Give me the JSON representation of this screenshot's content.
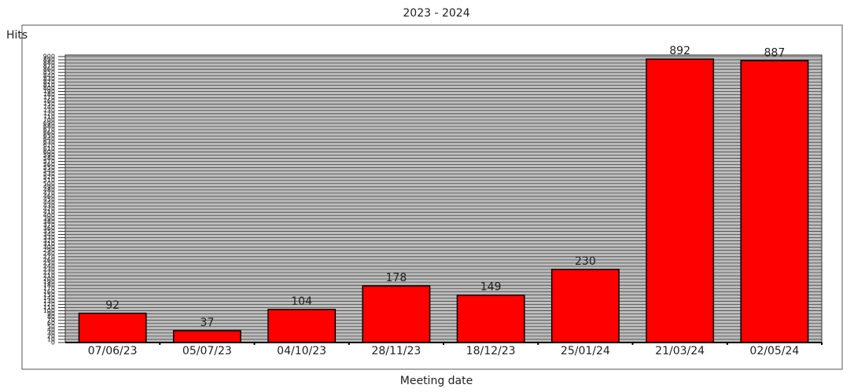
{
  "chart_data": {
    "type": "bar",
    "title": "2023 - 2024",
    "ylabel": "Hits",
    "xlabel": "Meeting date",
    "categories": [
      "07/06/23",
      "05/07/23",
      "04/10/23",
      "28/11/23",
      "18/12/23",
      "25/01/24",
      "21/03/24",
      "02/05/24"
    ],
    "values": [
      92,
      37,
      104,
      178,
      149,
      230,
      892,
      887
    ],
    "color": "#ff0000",
    "ylim": [
      0,
      900
    ],
    "yticks": [
      0,
      10,
      20,
      30,
      40,
      50,
      60,
      70,
      80,
      90,
      100,
      110,
      120,
      130,
      140,
      150,
      160,
      170,
      180,
      190,
      200,
      210,
      220,
      230,
      240,
      250,
      260,
      270,
      280,
      290,
      300,
      310,
      320,
      330,
      340,
      350,
      360,
      370,
      380,
      390,
      400,
      410,
      420,
      430,
      440,
      450,
      460,
      470,
      480,
      490,
      500,
      510,
      520,
      530,
      540,
      550,
      560,
      570,
      580,
      590,
      600,
      610,
      620,
      630,
      640,
      650,
      660,
      670,
      680,
      690,
      700,
      710,
      720,
      730,
      740,
      750,
      760,
      770,
      780,
      790,
      800,
      810,
      820,
      830,
      840,
      850,
      860,
      870,
      880,
      890,
      900
    ],
    "grid": true
  }
}
